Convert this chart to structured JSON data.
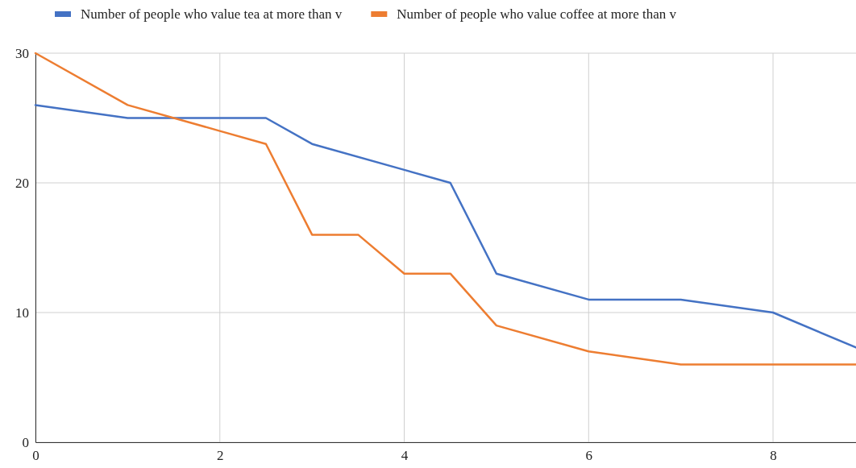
{
  "chart_data": {
    "type": "line",
    "xlim": [
      0,
      8.9
    ],
    "ylim": [
      0,
      30
    ],
    "xticks": [
      0,
      2,
      4,
      6,
      8
    ],
    "yticks": [
      0,
      10,
      20,
      30
    ],
    "grid": true,
    "legend": "top",
    "marker": "none",
    "line_style": "solid",
    "series": [
      {
        "name": "Number of people who value tea at more than v",
        "color": "#4472c4",
        "x": [
          0,
          1,
          2,
          2.5,
          3,
          4,
          4.5,
          5,
          6,
          7,
          8,
          8.9
        ],
        "values": [
          26,
          25,
          25,
          25,
          23,
          21,
          20,
          13,
          11,
          11,
          10,
          7.3
        ]
      },
      {
        "name": "Number of people who value coffee at more than v",
        "color": "#ed7d31",
        "x": [
          0,
          1,
          2,
          2.5,
          3,
          3.5,
          4,
          4.5,
          5,
          6,
          7,
          8,
          8.9
        ],
        "values": [
          30,
          26,
          24,
          23,
          16,
          16,
          13,
          13,
          9,
          7,
          6,
          6,
          6
        ]
      }
    ]
  }
}
